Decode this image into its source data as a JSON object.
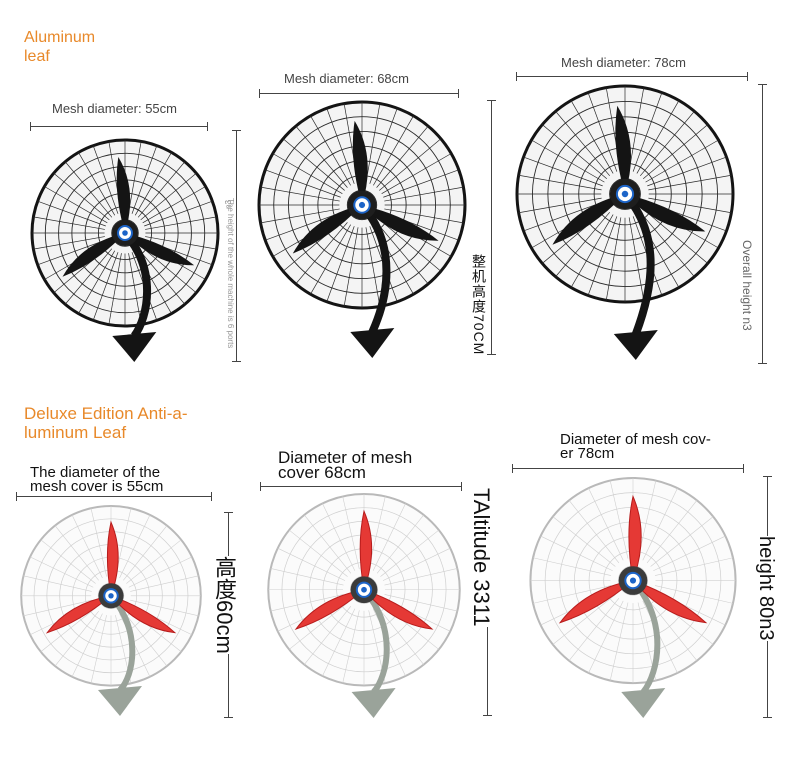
{
  "sections": {
    "aluminum_title_line1": "Aluminum",
    "aluminum_title_line2": "leaf",
    "deluxe_title_line1": "Deluxe Edition Anti-a-",
    "deluxe_title_line2": "luminum Leaf"
  },
  "top_row": {
    "mesh_55": "Mesh diameter: 55cm",
    "height_55": "The height of the whole machine is 6 ports",
    "height_55_tail": "n3",
    "mesh_68": "Mesh diameter: 68cm",
    "height_68": "整机高度70CM",
    "mesh_78": "Mesh diameter: 78cm",
    "height_78": "Overall height n3"
  },
  "bottom_row": {
    "mesh_55_line1": "The diameter of the",
    "mesh_55_line2": "mesh cover is 55cm",
    "height_55": "高度60cm",
    "mesh_68_line1": "Diameter of mesh",
    "mesh_68_line2": "cover 68cm",
    "height_68": "TAltitude 3311",
    "mesh_78_line1": "Diameter of mesh cov-",
    "mesh_78_line2": "er 78cm",
    "height_78": "height 80n3"
  },
  "colors": {
    "accent": "#e8892a",
    "black_fan": "#141414",
    "red_blade": "#e53935",
    "white_grille": "#e6e6e6",
    "hub_blue": "#1c64c8"
  },
  "icons": {
    "black_fan": "wall-fan-black-icon",
    "white_fan": "wall-fan-white-red-icon"
  }
}
